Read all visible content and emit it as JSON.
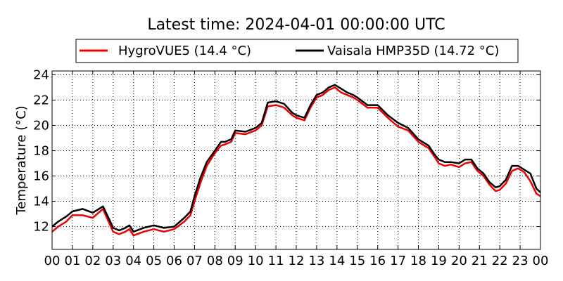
{
  "chart_data": {
    "type": "line",
    "title": "Latest time: 2024-04-01 00:00:00 UTC",
    "xlabel": "",
    "ylabel": "Temperature (°C)",
    "xlim": [
      0,
      24
    ],
    "ylim": [
      10.2,
      24.3
    ],
    "grid": true,
    "legend_position": "top",
    "x_ticks": [
      0,
      1,
      2,
      3,
      4,
      5,
      6,
      7,
      8,
      9,
      10,
      11,
      12,
      13,
      14,
      15,
      16,
      17,
      18,
      19,
      20,
      21,
      22,
      23,
      24
    ],
    "x_tick_labels": [
      "00",
      "01",
      "02",
      "03",
      "04",
      "05",
      "06",
      "07",
      "08",
      "09",
      "10",
      "11",
      "12",
      "13",
      "14",
      "15",
      "16",
      "17",
      "18",
      "19",
      "20",
      "21",
      "22",
      "23",
      "00"
    ],
    "y_ticks": [
      12,
      14,
      16,
      18,
      20,
      22,
      24
    ],
    "y_tick_labels": [
      "12",
      "14",
      "16",
      "18",
      "20",
      "22",
      "24"
    ],
    "series": [
      {
        "name": "HygroVUE5 (14.4 °C)",
        "color": "#ee0000",
        "x": [
          0,
          0.3,
          0.7,
          1.0,
          1.5,
          2.0,
          2.5,
          2.8,
          3.0,
          3.3,
          3.6,
          3.8,
          4.0,
          4.5,
          5.0,
          5.5,
          6.0,
          6.5,
          6.8,
          7.0,
          7.3,
          7.6,
          8.0,
          8.3,
          8.5,
          8.8,
          9.0,
          9.5,
          10.0,
          10.3,
          10.6,
          11.0,
          11.4,
          11.8,
          12.0,
          12.4,
          12.7,
          13.0,
          13.3,
          13.6,
          13.9,
          14.2,
          14.5,
          14.8,
          15.0,
          15.5,
          16.0,
          16.5,
          17.0,
          17.5,
          18.0,
          18.5,
          18.8,
          19.0,
          19.3,
          19.6,
          20.0,
          20.3,
          20.6,
          20.9,
          21.2,
          21.5,
          21.8,
          22.0,
          22.3,
          22.6,
          22.9,
          23.2,
          23.5,
          23.8,
          24.0
        ],
        "y": [
          11.6,
          12.0,
          12.4,
          12.9,
          12.9,
          12.7,
          13.4,
          12.3,
          11.6,
          11.4,
          11.6,
          11.8,
          11.3,
          11.6,
          11.8,
          11.6,
          11.8,
          12.4,
          12.9,
          14.0,
          15.5,
          16.8,
          17.8,
          18.4,
          18.5,
          18.7,
          19.4,
          19.3,
          19.6,
          20.0,
          21.5,
          21.6,
          21.4,
          20.8,
          20.6,
          20.4,
          21.4,
          22.2,
          22.4,
          22.8,
          23.0,
          22.6,
          22.4,
          22.2,
          22.0,
          21.4,
          21.4,
          20.6,
          19.9,
          19.6,
          18.7,
          18.2,
          17.5,
          17.0,
          16.8,
          16.9,
          16.7,
          17.0,
          17.1,
          16.4,
          16.0,
          15.3,
          14.8,
          14.9,
          15.4,
          16.4,
          16.6,
          16.3,
          15.6,
          14.6,
          14.4
        ]
      },
      {
        "name": "Vaisala HMP35D (14.72 °C)",
        "color": "#000000",
        "x": [
          0,
          0.3,
          0.7,
          1.0,
          1.5,
          2.0,
          2.5,
          2.8,
          3.0,
          3.3,
          3.6,
          3.8,
          4.0,
          4.5,
          5.0,
          5.5,
          6.0,
          6.5,
          6.8,
          7.0,
          7.3,
          7.6,
          8.0,
          8.3,
          8.5,
          8.8,
          9.0,
          9.5,
          10.0,
          10.3,
          10.6,
          11.0,
          11.4,
          11.8,
          12.0,
          12.4,
          12.7,
          13.0,
          13.3,
          13.6,
          13.9,
          14.2,
          14.5,
          14.8,
          15.0,
          15.5,
          16.0,
          16.5,
          17.0,
          17.5,
          18.0,
          18.5,
          18.8,
          19.0,
          19.3,
          19.6,
          20.0,
          20.3,
          20.6,
          20.9,
          21.2,
          21.5,
          21.8,
          22.0,
          22.3,
          22.6,
          22.9,
          23.2,
          23.5,
          23.8,
          24.0
        ],
        "y": [
          12.0,
          12.4,
          12.8,
          13.2,
          13.4,
          13.1,
          13.6,
          12.6,
          11.9,
          11.7,
          11.9,
          12.1,
          11.6,
          11.9,
          12.1,
          11.9,
          12.0,
          12.7,
          13.2,
          14.4,
          15.9,
          17.1,
          18.0,
          18.7,
          18.7,
          18.9,
          19.6,
          19.5,
          19.8,
          20.2,
          21.8,
          21.9,
          21.7,
          21.0,
          20.8,
          20.6,
          21.6,
          22.4,
          22.6,
          23.0,
          23.2,
          22.9,
          22.6,
          22.4,
          22.2,
          21.6,
          21.6,
          20.8,
          20.2,
          19.8,
          18.9,
          18.4,
          17.7,
          17.3,
          17.1,
          17.1,
          17.0,
          17.3,
          17.3,
          16.6,
          16.2,
          15.5,
          15.1,
          15.2,
          15.7,
          16.8,
          16.8,
          16.5,
          16.2,
          15.0,
          14.7
        ]
      }
    ]
  }
}
